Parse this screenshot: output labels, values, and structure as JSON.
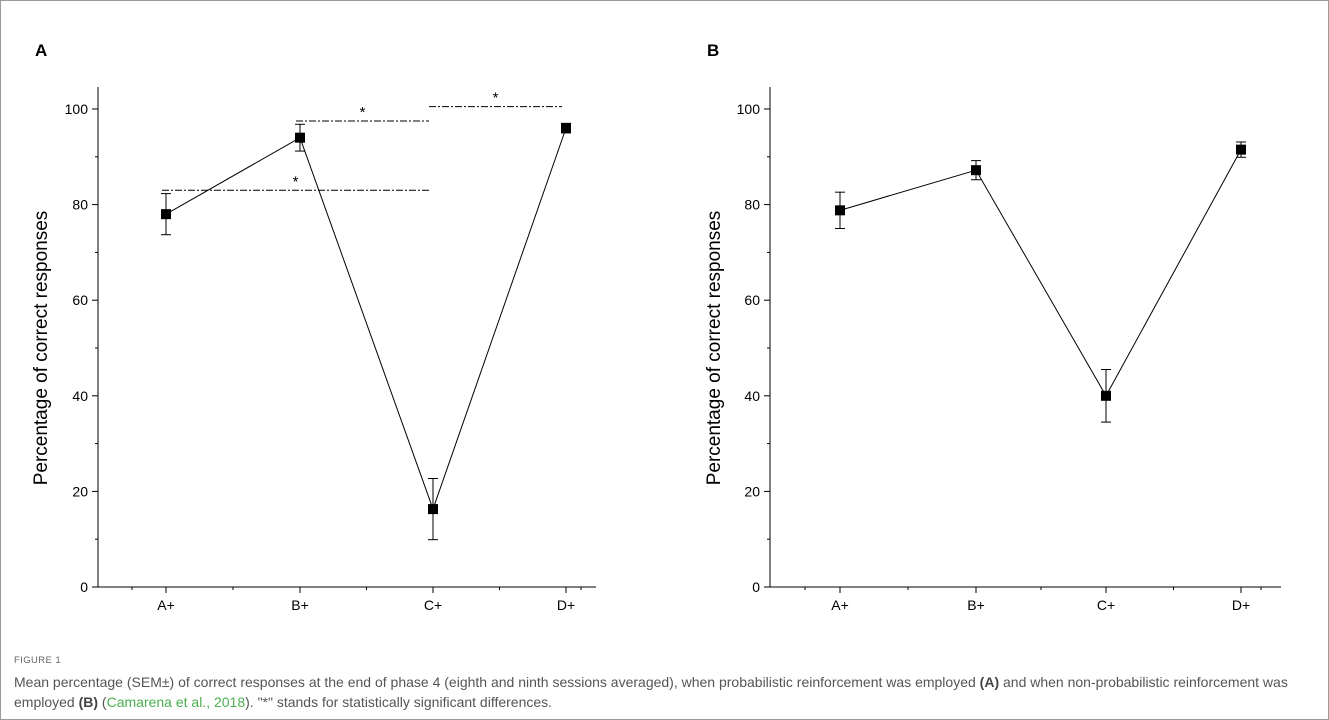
{
  "chart_data": [
    {
      "panel": "A",
      "type": "line",
      "ylabel": "Percentage of correct responses",
      "ylim": [
        0,
        100
      ],
      "yticks": [
        0,
        20,
        40,
        60,
        80,
        100
      ],
      "categories": [
        "A+",
        "B+",
        "C+",
        "D+"
      ],
      "values": [
        78,
        94,
        16.3,
        96
      ],
      "errors": [
        4.3,
        2.8,
        6.4,
        1.0
      ],
      "significance": [
        {
          "from": "A+",
          "to": "C+",
          "y": 83,
          "label": "*"
        },
        {
          "from": "B+",
          "to": "C+",
          "y": 97.5,
          "label": "*"
        },
        {
          "from": "C+",
          "to": "D+",
          "y": 100.5,
          "label": "*"
        }
      ],
      "grid": false
    },
    {
      "panel": "B",
      "type": "line",
      "ylabel": "Percentage of correct responses",
      "ylim": [
        0,
        100
      ],
      "yticks": [
        0,
        20,
        40,
        60,
        80,
        100
      ],
      "categories": [
        "A+",
        "B+",
        "C+",
        "D+"
      ],
      "values": [
        78.8,
        87.2,
        40,
        91.5
      ],
      "errors": [
        3.8,
        2.0,
        5.5,
        1.6
      ],
      "significance": [],
      "grid": false
    }
  ],
  "caption": {
    "figure_label": "FIGURE 1",
    "text_1": "Mean percentage (SEM±) of correct responses at the end of phase 4 (eighth and ninth sessions averaged), when probabilistic reinforcement was employed ",
    "ref_a": "(A)",
    "text_2": " and when non-probabilistic reinforcement was employed ",
    "ref_b": "(B)",
    "text_3": " (",
    "citation": "Camarena et al., 2018",
    "text_4": "). \"*\" stands for statistically significant differences."
  },
  "colors": {
    "series": "#000000",
    "caption_text": "#555555",
    "citation": "#4caf50"
  }
}
